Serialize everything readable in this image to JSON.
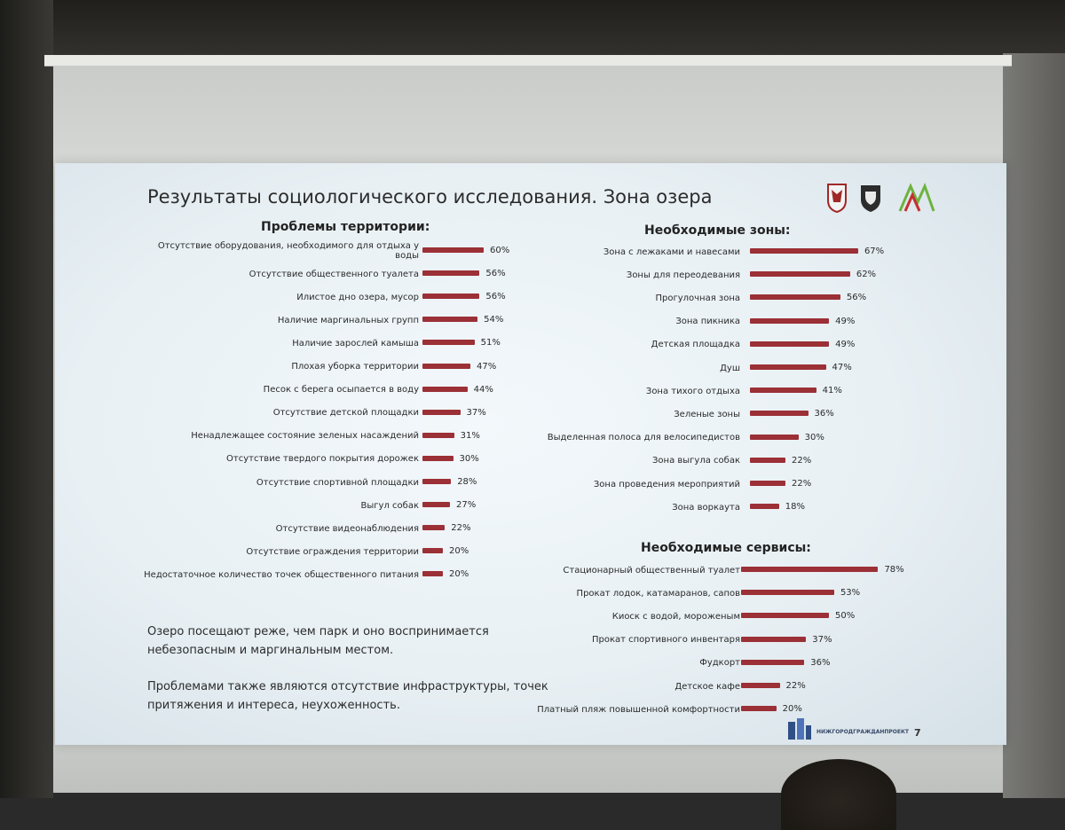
{
  "slide": {
    "title": "Результаты социологического исследования. Зона озера",
    "page_number": "7",
    "notes": [
      "Озеро посещают реже, чем парк и оно воспринимается небезопасным и маргинальным местом.",
      "Проблемами также являются отсутствие инфраструктуры, точек притяжения и интереса, неухоженность."
    ],
    "footer_logo_text": "НИЖГОРОДГРАЖДАНПРОЕКТ",
    "bar_color": "#9b3036"
  },
  "chart_data": [
    {
      "type": "bar",
      "title": "Проблемы территории:",
      "categories": [
        "Отсутствие оборудования, необходимого для отдыха у воды",
        "Отсутствие общественного туалета",
        "Илистое дно озера, мусор",
        "Наличие маргинальных групп",
        "Наличие зарослей камыша",
        "Плохая уборка территории",
        "Песок с берега осыпается в воду",
        "Отсутствие детской площадки",
        "Ненадлежащее состояние зеленых насаждений",
        "Отсутствие твердого покрытия дорожек",
        "Отсутствие спортивной площадки",
        "Выгул собак",
        "Отсутствие видеонаблюдения",
        "Отсутствие ограждения территории",
        "Недостаточное количество точек общественного питания"
      ],
      "values": [
        60,
        56,
        56,
        54,
        51,
        47,
        44,
        37,
        31,
        30,
        28,
        27,
        22,
        20,
        20
      ],
      "value_labels": [
        "60%",
        "56%",
        "56%",
        "54%",
        "51%",
        "47%",
        "44%",
        "37%",
        "31%",
        "30%",
        "28%",
        "27%",
        "22%",
        "20%",
        "20%"
      ],
      "value_unit": "%"
    },
    {
      "type": "bar",
      "title": "Необходимые зоны:",
      "categories": [
        "Зона с лежаками и навесами",
        "Зоны для переодевания",
        "Прогулочная зона",
        "Зона пикника",
        "Детская площадка",
        "Душ",
        "Зона тихого отдыха",
        "Зеленые зоны",
        "Выделенная полоса для велосипедистов",
        "Зона выгула собак",
        "Зона проведения мероприятий",
        "Зона воркаута"
      ],
      "values": [
        67,
        62,
        56,
        49,
        49,
        47,
        41,
        36,
        30,
        22,
        22,
        18
      ],
      "value_labels": [
        "67%",
        "62%",
        "56%",
        "49%",
        "49%",
        "47%",
        "41%",
        "36%",
        "30%",
        "22%",
        "22%",
        "18%"
      ],
      "value_unit": "%"
    },
    {
      "type": "bar",
      "title": "Необходимые сервисы:",
      "categories": [
        "Стационарный общественный туалет",
        "Прокат лодок, катамаранов, сапов",
        "Киоск с водой, мороженым",
        "Прокат спортивного инвентаря",
        "Фудкорт",
        "Детское кафе",
        "Платный пляж повышенной комфортности"
      ],
      "values": [
        78,
        53,
        50,
        37,
        36,
        22,
        20
      ],
      "value_labels": [
        "78%",
        "53%",
        "50%",
        "37%",
        "36%",
        "22%",
        "20%"
      ],
      "value_unit": "%"
    }
  ]
}
